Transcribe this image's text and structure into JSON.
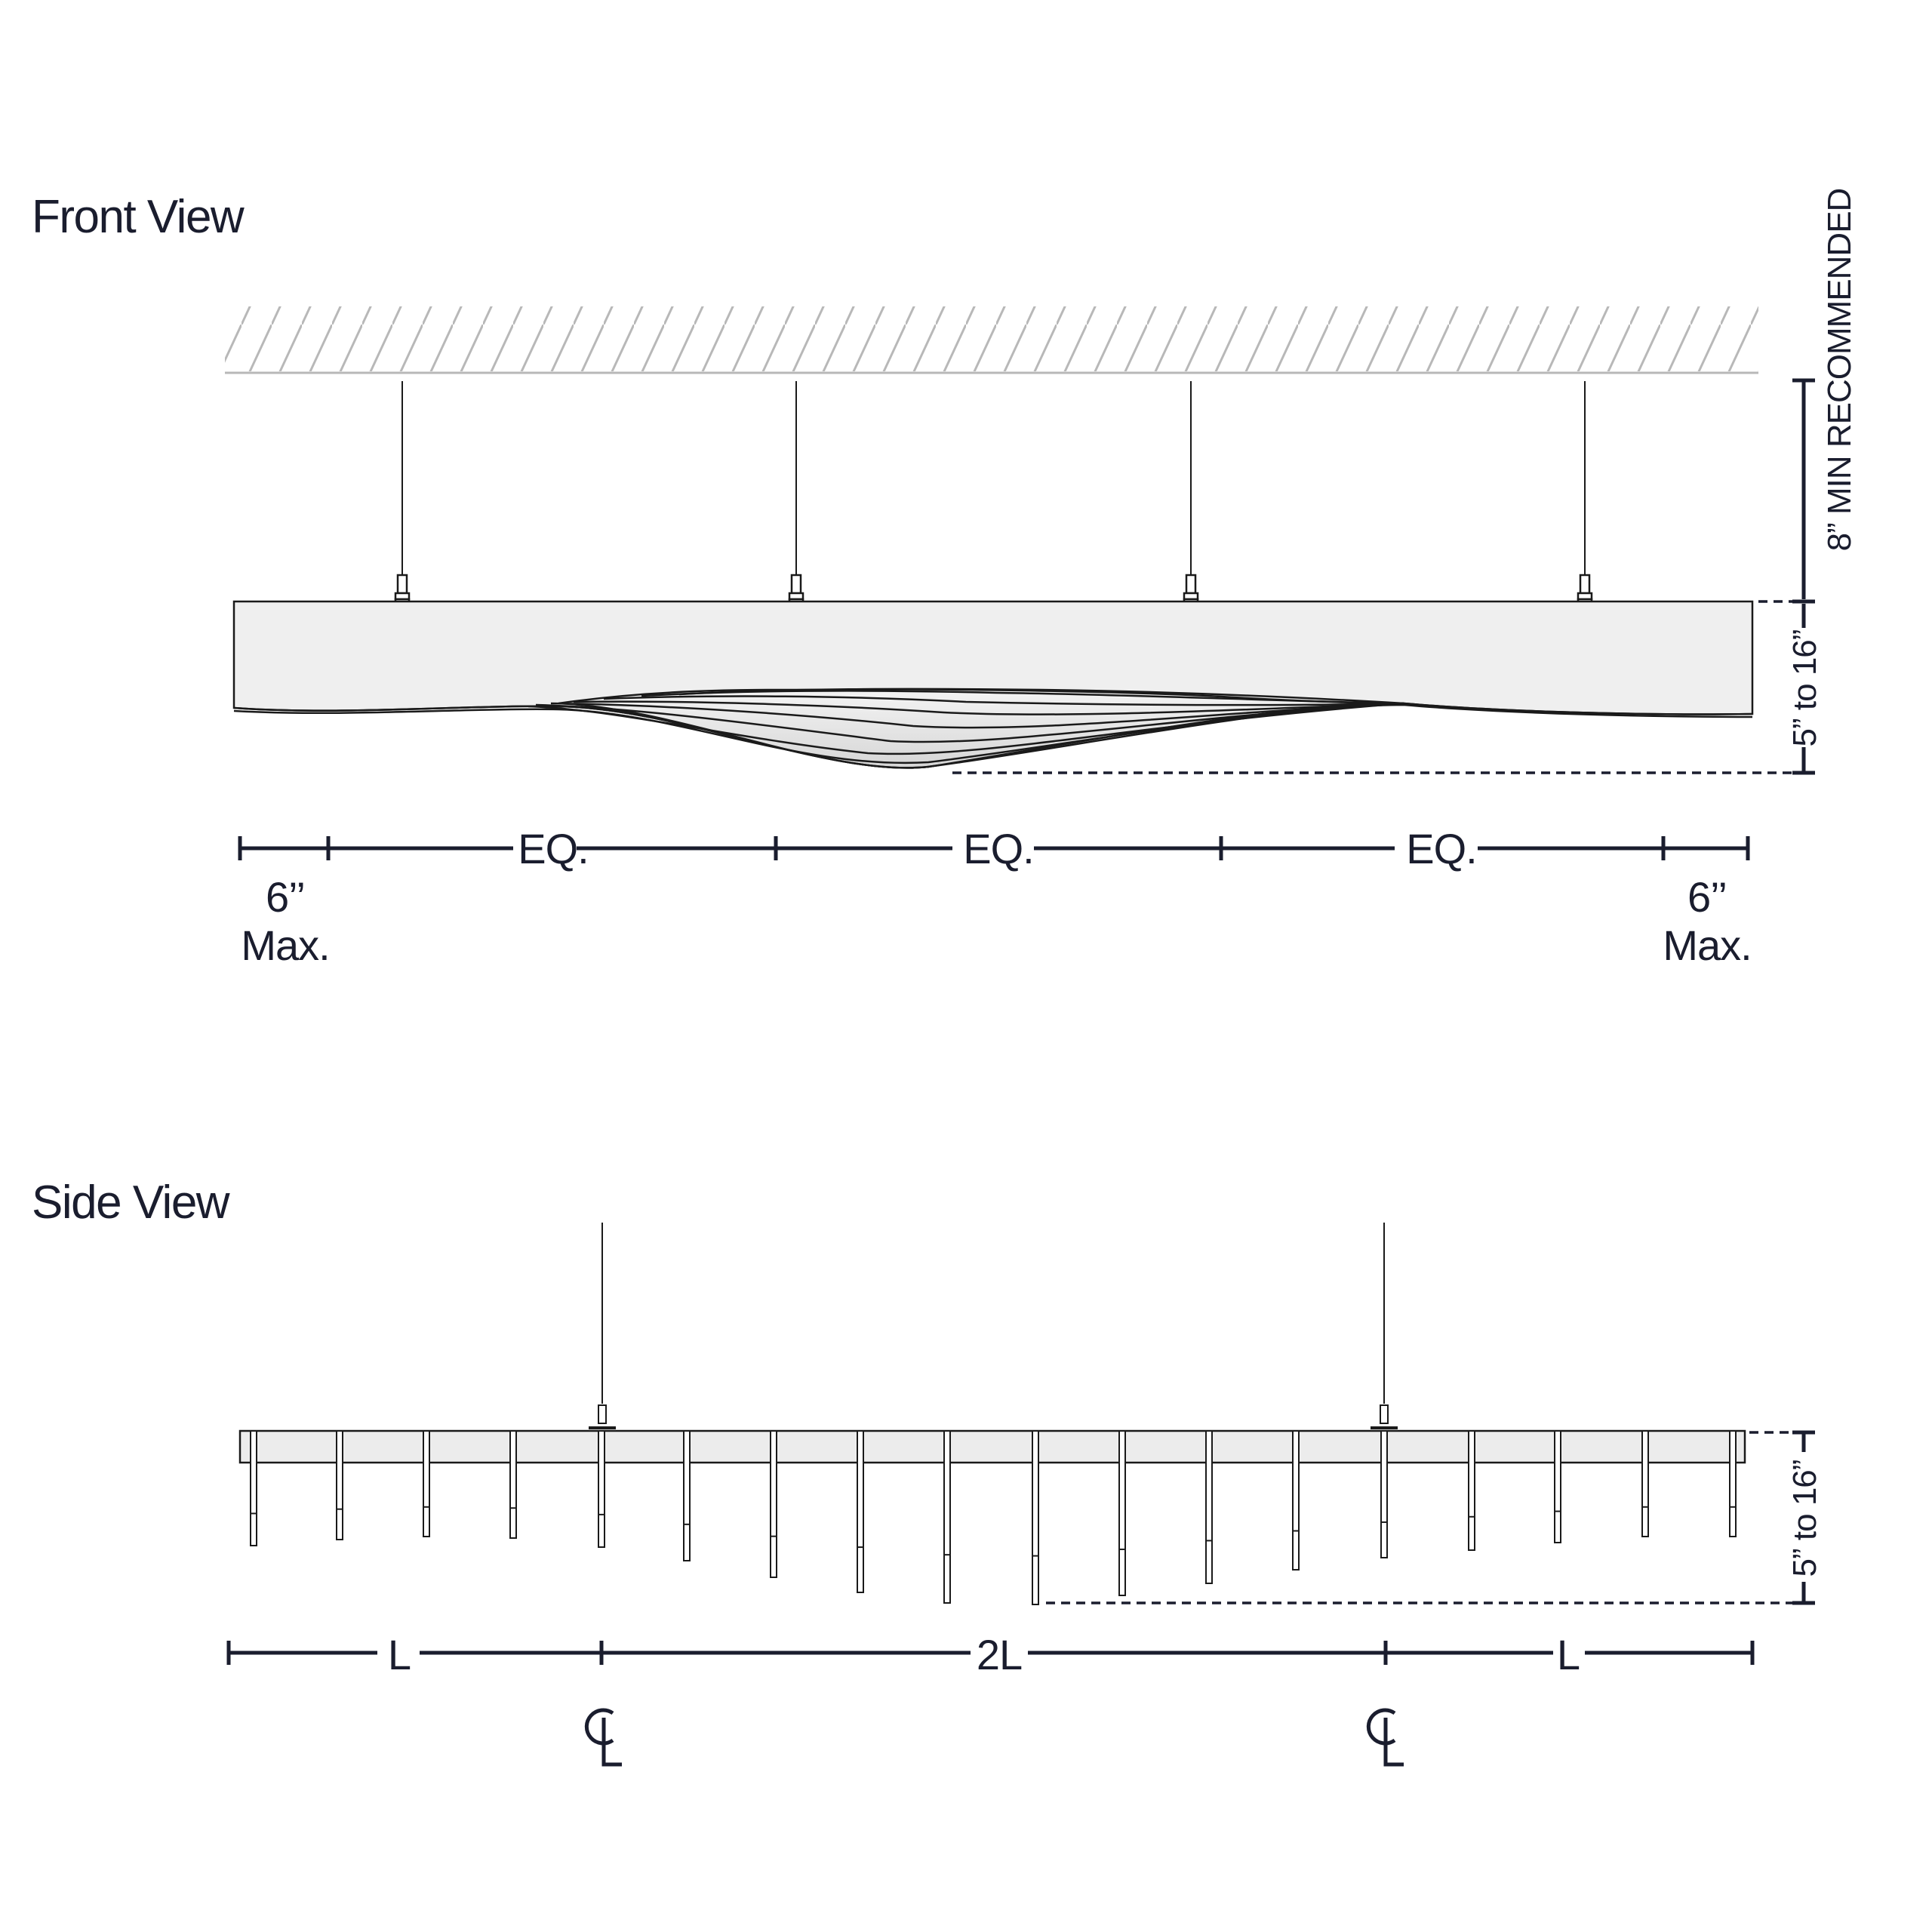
{
  "front_view": {
    "title": "Front View",
    "dim_eq": [
      "EQ.",
      "EQ.",
      "EQ."
    ],
    "dim_left_value": "6’’",
    "dim_left_label": "Max.",
    "dim_right_value": "6’’",
    "dim_right_label": "Max.",
    "clearance_label": "8” MIN RECOMMENDED",
    "height_range_label": "5” to 16”"
  },
  "side_view": {
    "title": "Side View",
    "dim_left": "L",
    "dim_center": "2L",
    "dim_right": "L",
    "centerline_symbol_left": "CL",
    "centerline_symbol_right": "CL",
    "height_range_label": "5” to 16”"
  }
}
